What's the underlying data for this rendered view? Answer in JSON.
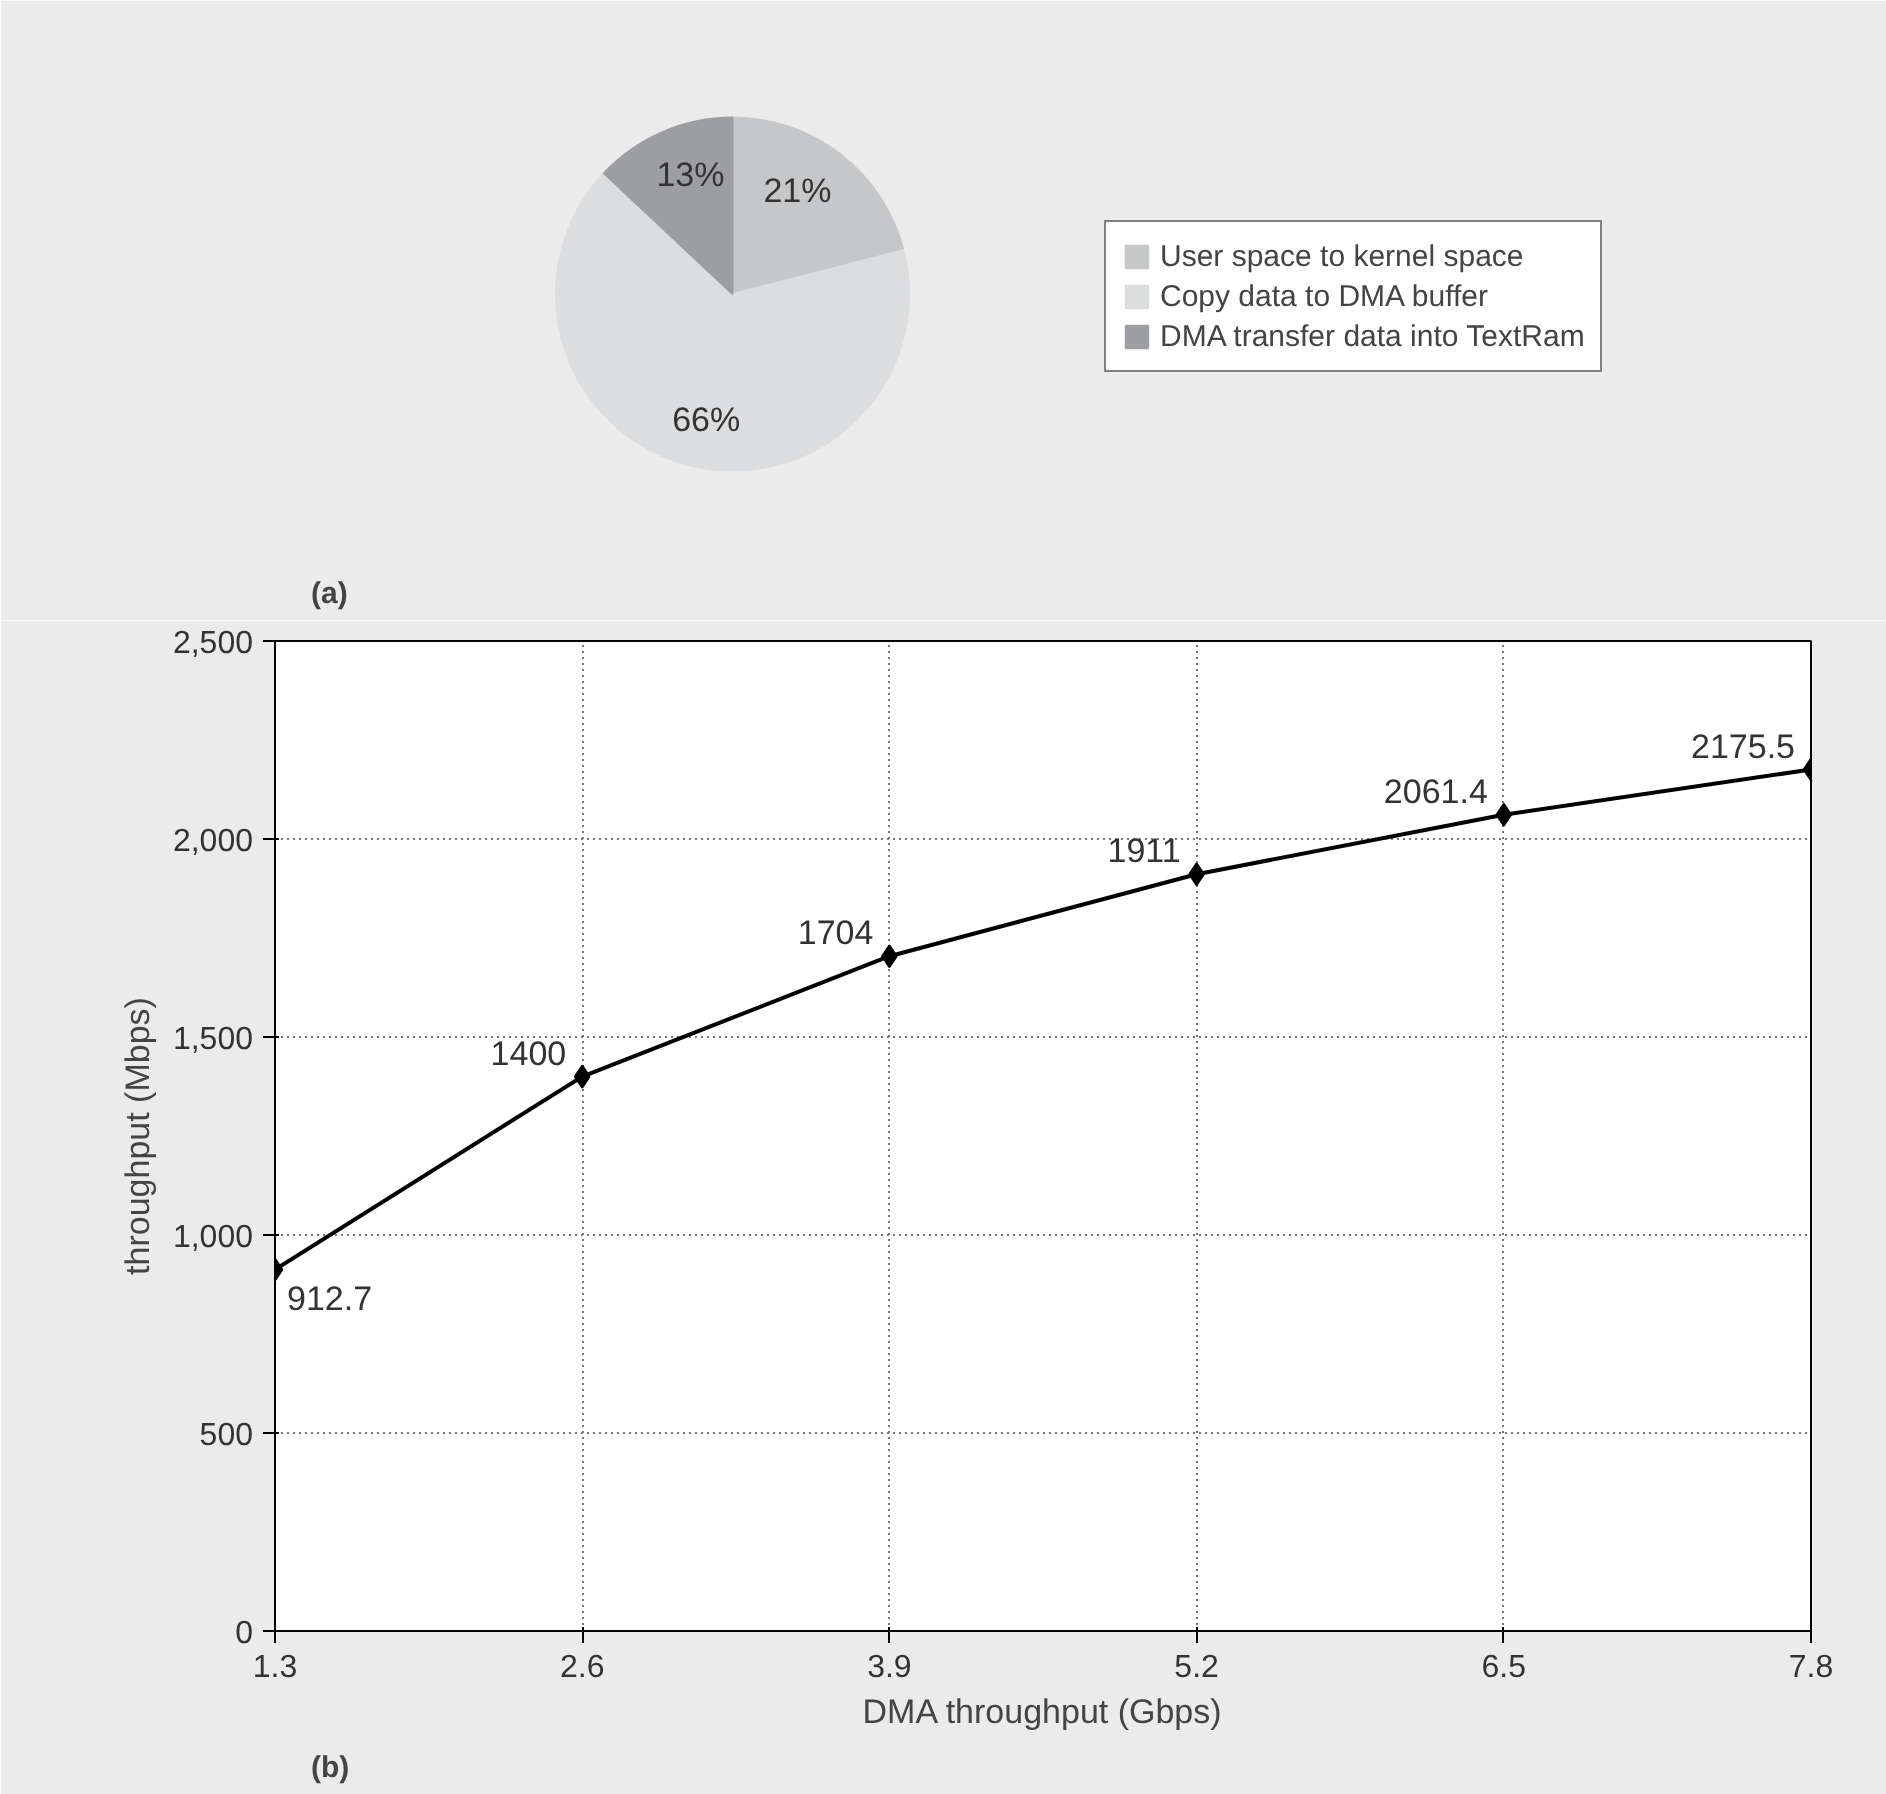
{
  "chart_data": [
    {
      "type": "pie",
      "categories": [
        "User space to kernel space",
        "Copy data to DMA buffer",
        "DMA transfer data into TextRam"
      ],
      "values": [
        21,
        66,
        13
      ],
      "value_labels": [
        "21%",
        "66%",
        "13%"
      ],
      "colors": [
        "#c6c7c9",
        "#dcdddf",
        "#9d9ea1"
      ],
      "legend": "right",
      "annotations": [
        "(a)"
      ]
    },
    {
      "type": "line",
      "xlabel": "DMA throughput (Gbps)",
      "ylabel": "throughput (Mbps)",
      "x": [
        1.3,
        2.6,
        3.9,
        5.2,
        6.5,
        7.8
      ],
      "series": [
        {
          "color": "#000000",
          "values": [
            912.7,
            1400,
            1704,
            1911,
            2061.4,
            2175.5
          ]
        }
      ],
      "xlim": [
        1.3,
        7.8
      ],
      "xticks": [
        1.3,
        2.6,
        3.9,
        5.2,
        6.5,
        7.8
      ],
      "ylim": [
        0,
        2500
      ],
      "yticks": [
        0,
        500,
        {
          "value": 1000,
          "label": "1,000"
        },
        {
          "value": 1500,
          "label": "1,500"
        },
        {
          "value": 2000,
          "label": "2,000"
        },
        {
          "value": 2500,
          "label": "2,500"
        }
      ],
      "grid": true,
      "marker": "diamond",
      "line_style": "solid",
      "data_labels": true,
      "annotations": [
        "(b)"
      ]
    }
  ]
}
